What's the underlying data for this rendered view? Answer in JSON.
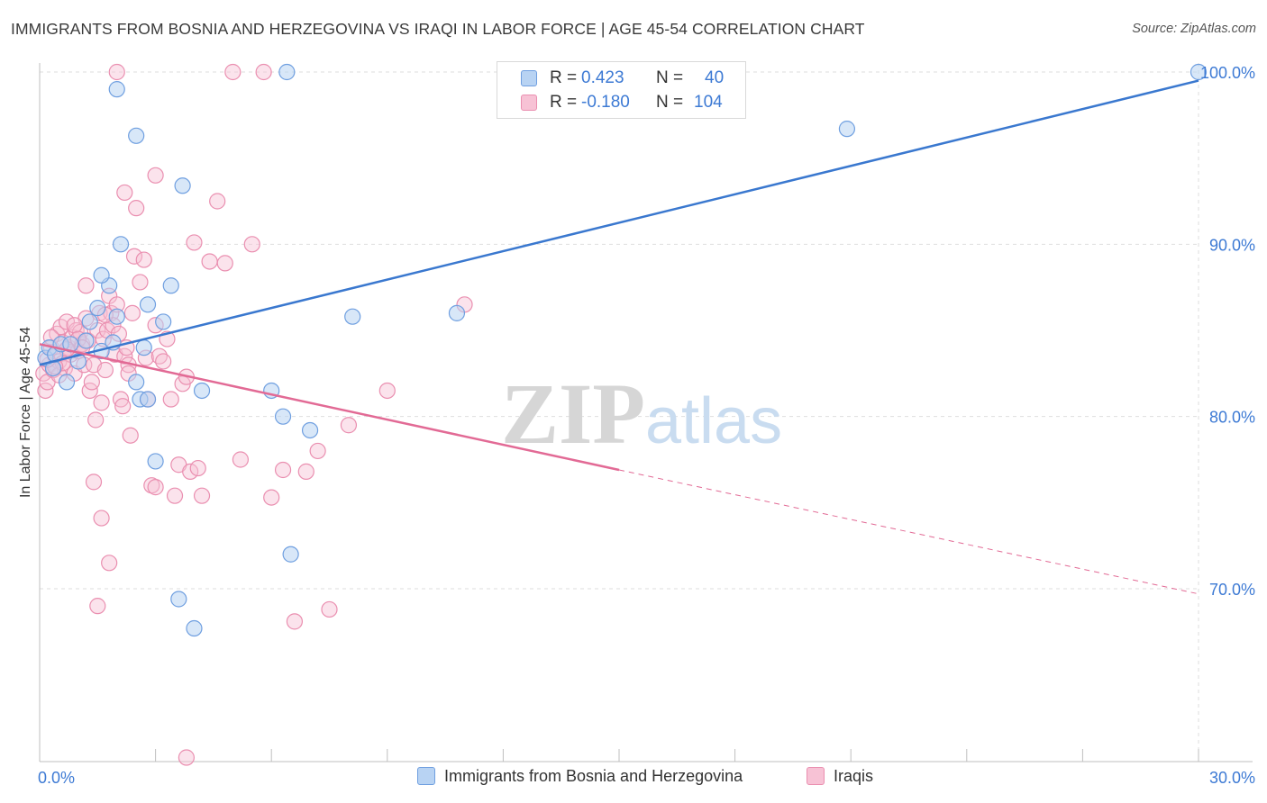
{
  "header": {
    "title": "IMMIGRANTS FROM BOSNIA AND HERZEGOVINA VS IRAQI IN LABOR FORCE | AGE 45-54 CORRELATION CHART",
    "source": "Source: ZipAtlas.com"
  },
  "watermark": {
    "zip": "ZIP",
    "atlas": "atlas"
  },
  "legend": {
    "r_label": "R =",
    "n_label": "N =",
    "series": [
      {
        "r": "0.423",
        "n": "40"
      },
      {
        "r": "-0.180",
        "n": "104"
      }
    ]
  },
  "colors": {
    "blue_fill": "#b8d3f3",
    "blue_stroke": "#6f9fe0",
    "blue_line": "#3a78cf",
    "pink_fill": "#f7c2d5",
    "pink_stroke": "#ea8fb0",
    "pink_line": "#e26a95",
    "tick_text": "#3d7ad4",
    "grid": "#dedede"
  },
  "chart_data": {
    "type": "scatter",
    "title": "IMMIGRANTS FROM BOSNIA AND HERZEGOVINA VS IRAQI IN LABOR FORCE | AGE 45-54 CORRELATION CHART",
    "xlabel": "",
    "ylabel": "In Labor Force | Age 45-54",
    "xlim": [
      0,
      30
    ],
    "ylim": [
      60,
      101
    ],
    "x_tick_labels": [
      "0.0%",
      "30.0%"
    ],
    "y_ticks": [
      70,
      80,
      90,
      100
    ],
    "y_tick_labels": [
      "70.0%",
      "80.0%",
      "90.0%",
      "100.0%"
    ],
    "grid": true,
    "series": [
      {
        "name": "Immigrants from Bosnia and Herzegovina",
        "r": 0.423,
        "n": 40,
        "trend": {
          "x0": 0.0,
          "y0": 83.0,
          "x1": 30.0,
          "y1": 99.5
        },
        "points": [
          [
            0.15,
            83.4
          ],
          [
            0.25,
            84.0
          ],
          [
            0.35,
            82.8
          ],
          [
            0.4,
            83.6
          ],
          [
            0.55,
            84.2
          ],
          [
            0.7,
            82.0
          ],
          [
            1.0,
            83.2
          ],
          [
            1.3,
            85.5
          ],
          [
            1.6,
            83.8
          ],
          [
            1.9,
            84.3
          ],
          [
            2.0,
            85.8
          ],
          [
            1.8,
            87.6
          ],
          [
            1.5,
            86.3
          ],
          [
            1.6,
            88.2
          ],
          [
            2.5,
            82.0
          ],
          [
            2.5,
            96.3
          ],
          [
            2.7,
            84.0
          ],
          [
            2.8,
            86.5
          ],
          [
            2.6,
            81.0
          ],
          [
            2.8,
            81.0
          ],
          [
            3.0,
            77.4
          ],
          [
            3.2,
            85.5
          ],
          [
            3.4,
            87.6
          ],
          [
            3.7,
            93.4
          ],
          [
            4.2,
            81.5
          ],
          [
            6.0,
            81.5
          ],
          [
            6.3,
            80.0
          ],
          [
            7.0,
            79.2
          ],
          [
            6.5,
            72.0
          ],
          [
            3.6,
            69.4
          ],
          [
            4.0,
            67.7
          ],
          [
            1.2,
            84.4
          ],
          [
            0.8,
            84.2
          ],
          [
            2.1,
            90.0
          ],
          [
            2.0,
            99.0
          ],
          [
            6.4,
            100.0
          ],
          [
            8.1,
            85.8
          ],
          [
            10.8,
            86.0
          ],
          [
            20.9,
            96.7
          ],
          [
            30.0,
            100.0
          ]
        ]
      },
      {
        "name": "Iraqis",
        "r": -0.18,
        "n": 104,
        "trend": {
          "x0": 0.0,
          "y0": 84.2,
          "x1": 15.0,
          "y1": 76.9
        },
        "trend_extension": {
          "x0": 15.0,
          "y0": 76.9,
          "x1": 30.0,
          "y1": 69.7
        },
        "points": [
          [
            0.1,
            82.5
          ],
          [
            0.15,
            81.5
          ],
          [
            0.2,
            82.0
          ],
          [
            0.25,
            83.0
          ],
          [
            0.3,
            84.0
          ],
          [
            0.35,
            82.7
          ],
          [
            0.4,
            83.5
          ],
          [
            0.45,
            84.8
          ],
          [
            0.5,
            83.2
          ],
          [
            0.55,
            85.2
          ],
          [
            0.6,
            84.3
          ],
          [
            0.65,
            82.8
          ],
          [
            0.7,
            85.5
          ],
          [
            0.75,
            84.0
          ],
          [
            0.8,
            83.6
          ],
          [
            0.85,
            84.6
          ],
          [
            0.9,
            82.5
          ],
          [
            0.95,
            85.0
          ],
          [
            1.0,
            83.8
          ],
          [
            1.05,
            84.9
          ],
          [
            1.1,
            84.2
          ],
          [
            1.15,
            83.0
          ],
          [
            1.2,
            85.7
          ],
          [
            1.25,
            84.4
          ],
          [
            1.3,
            81.5
          ],
          [
            1.35,
            82.0
          ],
          [
            1.4,
            83.0
          ],
          [
            1.45,
            79.8
          ],
          [
            1.5,
            85.0
          ],
          [
            1.55,
            86.0
          ],
          [
            1.6,
            80.8
          ],
          [
            1.65,
            84.5
          ],
          [
            1.7,
            82.7
          ],
          [
            1.75,
            85.0
          ],
          [
            1.8,
            87.0
          ],
          [
            1.85,
            86.0
          ],
          [
            1.9,
            85.3
          ],
          [
            1.95,
            83.6
          ],
          [
            2.0,
            86.5
          ],
          [
            2.05,
            84.8
          ],
          [
            2.1,
            81.0
          ],
          [
            2.15,
            80.6
          ],
          [
            2.2,
            83.5
          ],
          [
            2.25,
            84.0
          ],
          [
            2.3,
            83.0
          ],
          [
            2.35,
            78.9
          ],
          [
            2.4,
            86.0
          ],
          [
            2.45,
            89.3
          ],
          [
            2.5,
            92.1
          ],
          [
            2.6,
            87.8
          ],
          [
            2.7,
            89.1
          ],
          [
            2.75,
            83.4
          ],
          [
            2.8,
            81.0
          ],
          [
            2.9,
            76.0
          ],
          [
            3.0,
            75.9
          ],
          [
            3.1,
            83.5
          ],
          [
            3.2,
            83.2
          ],
          [
            3.3,
            84.5
          ],
          [
            3.4,
            81.0
          ],
          [
            3.5,
            75.4
          ],
          [
            3.6,
            77.2
          ],
          [
            3.7,
            81.9
          ],
          [
            3.8,
            82.3
          ],
          [
            3.9,
            76.8
          ],
          [
            4.0,
            90.1
          ],
          [
            4.1,
            77.0
          ],
          [
            4.2,
            75.4
          ],
          [
            4.4,
            89.0
          ],
          [
            4.6,
            92.5
          ],
          [
            4.8,
            88.9
          ],
          [
            5.0,
            100.0
          ],
          [
            5.2,
            77.5
          ],
          [
            5.5,
            90.0
          ],
          [
            5.8,
            100.0
          ],
          [
            6.0,
            75.3
          ],
          [
            6.3,
            76.9
          ],
          [
            6.6,
            68.1
          ],
          [
            6.9,
            76.8
          ],
          [
            7.2,
            78.0
          ],
          [
            7.5,
            68.8
          ],
          [
            1.4,
            76.2
          ],
          [
            1.5,
            69.0
          ],
          [
            1.6,
            74.1
          ],
          [
            1.8,
            71.5
          ],
          [
            2.0,
            100.0
          ],
          [
            3.0,
            94.0
          ],
          [
            3.8,
            60.2
          ],
          [
            2.2,
            93.0
          ],
          [
            1.2,
            87.6
          ],
          [
            0.3,
            84.6
          ],
          [
            0.5,
            82.4
          ],
          [
            0.7,
            83.9
          ],
          [
            0.9,
            85.3
          ],
          [
            1.0,
            84.5
          ],
          [
            1.1,
            84.0
          ],
          [
            0.6,
            83.1
          ],
          [
            0.4,
            82.9
          ],
          [
            0.2,
            83.3
          ],
          [
            1.7,
            85.9
          ],
          [
            2.3,
            82.5
          ],
          [
            3.0,
            85.3
          ],
          [
            11.0,
            86.5
          ],
          [
            8.0,
            79.5
          ],
          [
            9.0,
            81.5
          ]
        ]
      }
    ]
  },
  "bottom_legend": {
    "items": [
      "Immigrants from Bosnia and Herzegovina",
      "Iraqis"
    ]
  }
}
